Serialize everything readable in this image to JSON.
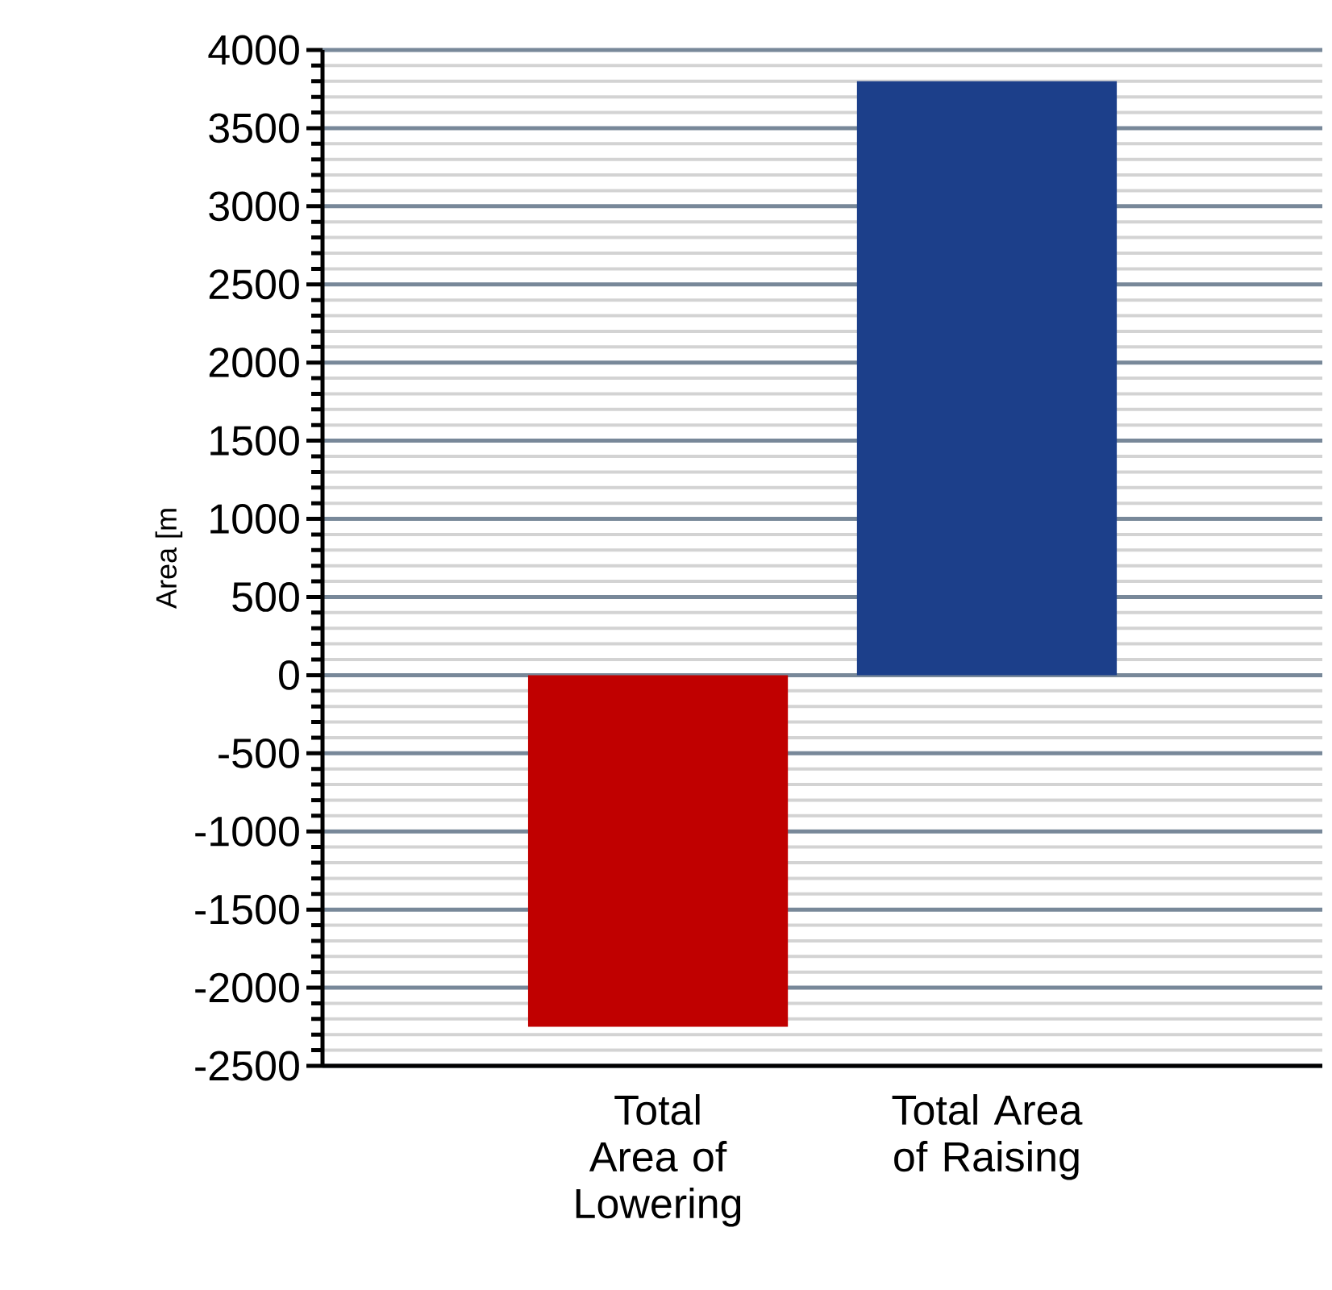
{
  "chart_data": {
    "type": "bar",
    "ylabel": "Area [m",
    "categories": [
      "Total Area of Lowering",
      "Total Area of Raising"
    ],
    "values": [
      -2250,
      3800
    ],
    "colors": [
      "#c00000",
      "#1c3f8a"
    ],
    "ylim": [
      -2500,
      4000
    ],
    "yticks": [
      -2500,
      -2000,
      -1500,
      -1000,
      -500,
      0,
      500,
      1000,
      1500,
      2000,
      2500,
      3000,
      3500,
      4000
    ],
    "grid": "y"
  }
}
